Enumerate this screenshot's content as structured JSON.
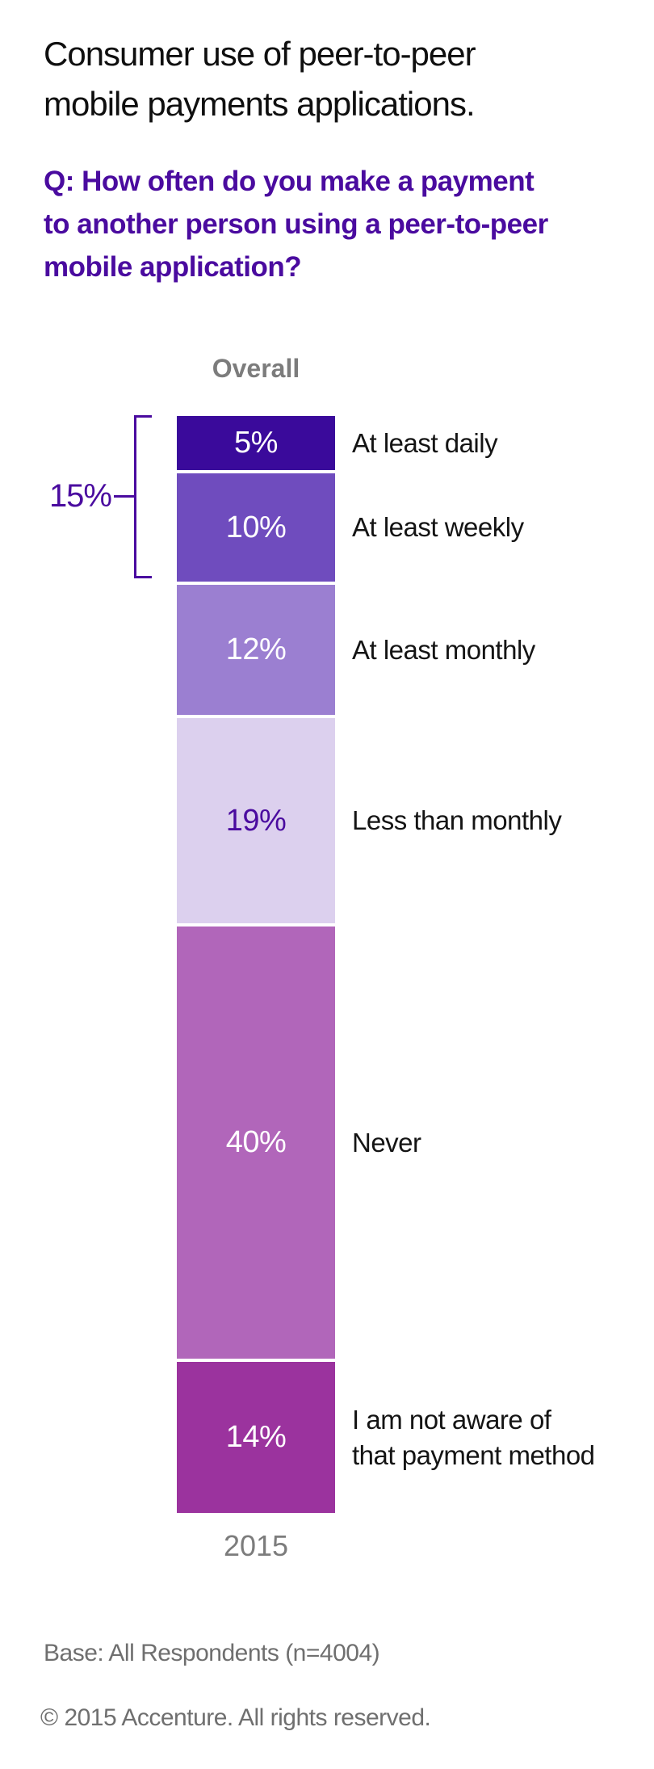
{
  "header": {
    "title": "Consumer use of peer-to-peer\nmobile payments applications.",
    "question": "Q: How often do you make a payment\nto another person using a peer-to-peer\nmobile application?"
  },
  "chart_data": {
    "type": "bar",
    "subtype": "single-column-stacked",
    "title": "Consumer use of peer-to-peer mobile payments applications.",
    "question": "Q: How often do you make a payment to another person using a peer-to-peer mobile application?",
    "column_header": "Overall",
    "x_tick": "2015",
    "unit": "percent",
    "total": 100,
    "segments": [
      {
        "label": "At least daily",
        "value": 5,
        "value_text": "5%",
        "color": "#3A0A9B",
        "text_color": "#ffffff"
      },
      {
        "label": "At least weekly",
        "value": 10,
        "value_text": "10%",
        "color": "#6F4CBE",
        "text_color": "#ffffff"
      },
      {
        "label": "At least monthly",
        "value": 12,
        "value_text": "12%",
        "color": "#9B7FD1",
        "text_color": "#ffffff"
      },
      {
        "label": "Less than monthly",
        "value": 19,
        "value_text": "19%",
        "color": "#DCD0EE",
        "text_color": "#4A0B9F"
      },
      {
        "label": "Never",
        "value": 40,
        "value_text": "40%",
        "color": "#B166BA",
        "text_color": "#ffffff"
      },
      {
        "label": "I am not aware of\nthat payment method",
        "value": 14,
        "value_text": "14%",
        "color": "#9B339E",
        "text_color": "#ffffff"
      }
    ],
    "bracket_annotation": {
      "label": "15%",
      "covers_segments": [
        "At least daily",
        "At least weekly"
      ]
    },
    "accent_color": "#4A0B9F",
    "legend_position": "right-of-bar",
    "grid": false
  },
  "footer": {
    "base": "Base: All Respondents (n=4004)",
    "copyright": "© 2015 Accenture. All rights reserved."
  }
}
